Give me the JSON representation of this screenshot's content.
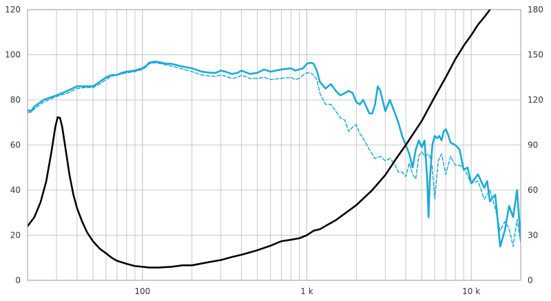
{
  "chart_data": {
    "type": "line",
    "title": "",
    "xlabel": "",
    "ylabel": "",
    "y2label": "",
    "x_scale": "log",
    "xlim": [
      20,
      20000
    ],
    "ylim": [
      0,
      120
    ],
    "y2lim": [
      0,
      180
    ],
    "grid": true,
    "legend": "none",
    "x_tick_labels": [
      {
        "value": 100,
        "label": "100"
      },
      {
        "value": 1000,
        "label": "1 k"
      },
      {
        "value": 10000,
        "label": "10 k"
      }
    ],
    "y_tick_labels": [
      "0",
      "20",
      "40",
      "60",
      "80",
      "100",
      "120"
    ],
    "y2_tick_labels": [
      "0",
      "30",
      "60",
      "90",
      "120",
      "150",
      "180"
    ],
    "colors": {
      "spl": "#1aa9d6",
      "impedance": "#000000",
      "grid": "#c8c8c8",
      "frame": "#999999"
    },
    "series": [
      {
        "axis": "left",
        "color": "#1aa9d6",
        "style": "solid",
        "points": [
          [
            20,
            75.5
          ],
          [
            21,
            75
          ],
          [
            22,
            77
          ],
          [
            25,
            80
          ],
          [
            30,
            82
          ],
          [
            35,
            84
          ],
          [
            40,
            86
          ],
          [
            45,
            86
          ],
          [
            50,
            86
          ],
          [
            55,
            88
          ],
          [
            60,
            90
          ],
          [
            65,
            91
          ],
          [
            70,
            91
          ],
          [
            75,
            92
          ],
          [
            80,
            92.5
          ],
          [
            90,
            93
          ],
          [
            100,
            94
          ],
          [
            105,
            95
          ],
          [
            110,
            96.5
          ],
          [
            120,
            97
          ],
          [
            130,
            96.5
          ],
          [
            140,
            96
          ],
          [
            150,
            96
          ],
          [
            170,
            95
          ],
          [
            200,
            94
          ],
          [
            230,
            92.5
          ],
          [
            260,
            92
          ],
          [
            280,
            92
          ],
          [
            300,
            93
          ],
          [
            320,
            92.5
          ],
          [
            350,
            91.5
          ],
          [
            380,
            92
          ],
          [
            400,
            93
          ],
          [
            450,
            91.5
          ],
          [
            500,
            92
          ],
          [
            550,
            93.5
          ],
          [
            600,
            92.5
          ],
          [
            700,
            93.5
          ],
          [
            800,
            94
          ],
          [
            850,
            93
          ],
          [
            900,
            93.5
          ],
          [
            950,
            94
          ],
          [
            1000,
            96
          ],
          [
            1050,
            96.5
          ],
          [
            1100,
            96
          ],
          [
            1150,
            93
          ],
          [
            1200,
            88
          ],
          [
            1300,
            85
          ],
          [
            1400,
            87
          ],
          [
            1500,
            84
          ],
          [
            1600,
            82
          ],
          [
            1700,
            83
          ],
          [
            1800,
            84
          ],
          [
            1900,
            83
          ],
          [
            2000,
            79
          ],
          [
            2100,
            78
          ],
          [
            2200,
            80
          ],
          [
            2400,
            74
          ],
          [
            2500,
            74
          ],
          [
            2600,
            78
          ],
          [
            2700,
            86
          ],
          [
            2800,
            84
          ],
          [
            3000,
            75
          ],
          [
            3200,
            80
          ],
          [
            3400,
            75
          ],
          [
            3600,
            70
          ],
          [
            3800,
            64
          ],
          [
            4000,
            60
          ],
          [
            4200,
            56
          ],
          [
            4400,
            50
          ],
          [
            4600,
            58
          ],
          [
            4800,
            62
          ],
          [
            5000,
            59
          ],
          [
            5200,
            62
          ],
          [
            5400,
            45
          ],
          [
            5500,
            28
          ],
          [
            5600,
            44
          ],
          [
            5800,
            60
          ],
          [
            6000,
            64
          ],
          [
            6200,
            63
          ],
          [
            6400,
            64
          ],
          [
            6600,
            62
          ],
          [
            6800,
            66
          ],
          [
            7000,
            67
          ],
          [
            7200,
            65
          ],
          [
            7500,
            61
          ],
          [
            8000,
            60
          ],
          [
            8500,
            58
          ],
          [
            9000,
            49
          ],
          [
            9500,
            50
          ],
          [
            10000,
            43
          ],
          [
            11000,
            47
          ],
          [
            12000,
            41
          ],
          [
            12500,
            44
          ],
          [
            13000,
            35
          ],
          [
            14000,
            38
          ],
          [
            15000,
            15
          ],
          [
            16000,
            22
          ],
          [
            17000,
            33
          ],
          [
            18000,
            28
          ],
          [
            19000,
            40
          ],
          [
            20000,
            18
          ]
        ]
      },
      {
        "axis": "left",
        "color": "#1aa9d6",
        "style": "dashed",
        "points": [
          [
            20,
            74.5
          ],
          [
            21,
            74.5
          ],
          [
            22,
            76
          ],
          [
            25,
            79
          ],
          [
            30,
            81.5
          ],
          [
            35,
            83
          ],
          [
            40,
            85
          ],
          [
            45,
            85.5
          ],
          [
            50,
            85.5
          ],
          [
            55,
            87
          ],
          [
            60,
            89
          ],
          [
            65,
            90.5
          ],
          [
            70,
            91
          ],
          [
            75,
            91.5
          ],
          [
            80,
            92
          ],
          [
            90,
            92.5
          ],
          [
            100,
            93.5
          ],
          [
            105,
            94.5
          ],
          [
            110,
            96
          ],
          [
            120,
            96.5
          ],
          [
            130,
            96
          ],
          [
            140,
            95.5
          ],
          [
            150,
            95
          ],
          [
            170,
            94
          ],
          [
            200,
            92.5
          ],
          [
            230,
            91
          ],
          [
            260,
            90.5
          ],
          [
            280,
            90.5
          ],
          [
            300,
            91
          ],
          [
            320,
            90.5
          ],
          [
            350,
            89.5
          ],
          [
            380,
            90
          ],
          [
            400,
            91
          ],
          [
            450,
            89.5
          ],
          [
            500,
            89.5
          ],
          [
            550,
            90
          ],
          [
            600,
            89
          ],
          [
            700,
            89.5
          ],
          [
            800,
            90
          ],
          [
            850,
            89
          ],
          [
            900,
            89.5
          ],
          [
            950,
            91
          ],
          [
            1000,
            92
          ],
          [
            1050,
            92
          ],
          [
            1100,
            91
          ],
          [
            1150,
            89
          ],
          [
            1200,
            83
          ],
          [
            1300,
            78
          ],
          [
            1400,
            78
          ],
          [
            1500,
            75
          ],
          [
            1600,
            72
          ],
          [
            1700,
            71
          ],
          [
            1800,
            66
          ],
          [
            1900,
            68
          ],
          [
            2000,
            69
          ],
          [
            2100,
            65
          ],
          [
            2200,
            63
          ],
          [
            2400,
            58
          ],
          [
            2600,
            54
          ],
          [
            2800,
            55
          ],
          [
            3000,
            53
          ],
          [
            3200,
            54
          ],
          [
            3400,
            52
          ],
          [
            3600,
            48
          ],
          [
            3800,
            48
          ],
          [
            4000,
            46
          ],
          [
            4200,
            52
          ],
          [
            4400,
            47
          ],
          [
            4600,
            45
          ],
          [
            4800,
            55
          ],
          [
            5000,
            57
          ],
          [
            5200,
            55
          ],
          [
            5500,
            56
          ],
          [
            5600,
            55
          ],
          [
            5800,
            50
          ],
          [
            6000,
            36
          ],
          [
            6300,
            53
          ],
          [
            6600,
            56
          ],
          [
            7000,
            47
          ],
          [
            7500,
            55
          ],
          [
            8000,
            51
          ],
          [
            8500,
            51
          ],
          [
            9000,
            50
          ],
          [
            10000,
            43
          ],
          [
            11000,
            44
          ],
          [
            12000,
            36
          ],
          [
            13000,
            40
          ],
          [
            14000,
            32
          ],
          [
            15000,
            22
          ],
          [
            16000,
            26
          ],
          [
            17000,
            23
          ],
          [
            18000,
            15
          ],
          [
            19000,
            27
          ],
          [
            20000,
            17
          ]
        ]
      },
      {
        "axis": "right",
        "color": "#000000",
        "style": "solid",
        "points": [
          [
            20,
            36
          ],
          [
            22,
            42
          ],
          [
            24,
            52
          ],
          [
            26,
            66
          ],
          [
            28,
            86
          ],
          [
            29.5,
            102
          ],
          [
            30.5,
            108.5
          ],
          [
            31.5,
            108
          ],
          [
            32.5,
            102
          ],
          [
            34,
            88
          ],
          [
            36,
            70
          ],
          [
            38,
            57
          ],
          [
            40,
            48
          ],
          [
            43,
            39
          ],
          [
            46,
            32
          ],
          [
            50,
            26
          ],
          [
            55,
            21
          ],
          [
            60,
            18
          ],
          [
            65,
            15
          ],
          [
            70,
            13
          ],
          [
            80,
            11
          ],
          [
            90,
            9.5
          ],
          [
            100,
            9
          ],
          [
            110,
            8.5
          ],
          [
            125,
            8.5
          ],
          [
            150,
            9
          ],
          [
            175,
            10
          ],
          [
            200,
            10
          ],
          [
            250,
            12
          ],
          [
            300,
            13.5
          ],
          [
            350,
            15.5
          ],
          [
            400,
            17
          ],
          [
            500,
            20
          ],
          [
            600,
            23
          ],
          [
            700,
            26
          ],
          [
            800,
            27
          ],
          [
            900,
            28
          ],
          [
            1000,
            30
          ],
          [
            1100,
            33
          ],
          [
            1200,
            34
          ],
          [
            1500,
            40
          ],
          [
            2000,
            50
          ],
          [
            2500,
            60
          ],
          [
            3000,
            70
          ],
          [
            3500,
            81
          ],
          [
            4000,
            90
          ],
          [
            5000,
            106
          ],
          [
            6000,
            122
          ],
          [
            7000,
            135
          ],
          [
            8000,
            147
          ],
          [
            9000,
            156
          ],
          [
            10000,
            163
          ],
          [
            11000,
            170
          ],
          [
            12000,
            175
          ],
          [
            13000,
            180
          ]
        ]
      }
    ]
  }
}
